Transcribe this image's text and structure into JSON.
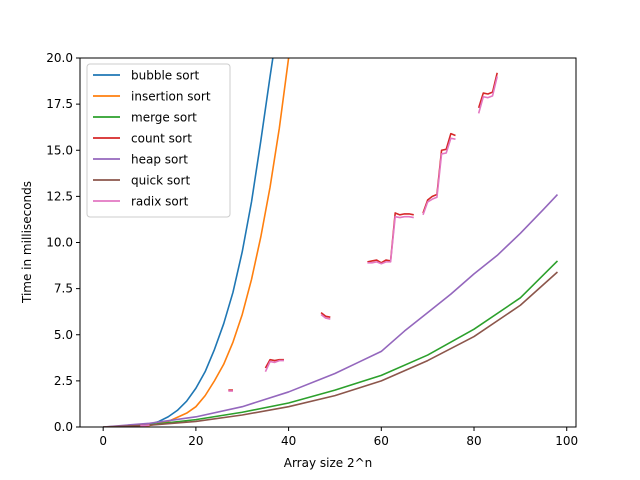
{
  "chart_data": {
    "type": "line",
    "title": "",
    "xlabel": "Array size 2^n",
    "ylabel": "Time in milliseconds",
    "xlim": [
      -5,
      102
    ],
    "ylim": [
      0,
      20
    ],
    "xticks": [
      0,
      20,
      40,
      60,
      80,
      100
    ],
    "yticks": [
      0.0,
      2.5,
      5.0,
      7.5,
      10.0,
      12.5,
      15.0,
      17.5,
      20.0
    ],
    "xtick_labels": [
      "0",
      "20",
      "40",
      "60",
      "80",
      "100"
    ],
    "ytick_labels": [
      "0.0",
      "2.5",
      "5.0",
      "7.5",
      "10.0",
      "12.5",
      "15.0",
      "17.5",
      "20.0"
    ],
    "grid": false,
    "legend_position": "upper-left",
    "series": [
      {
        "name": "bubble sort",
        "color": "#1f77b4",
        "x": [
          0,
          5,
          10,
          12,
          14,
          16,
          18,
          20,
          22,
          24,
          26,
          28,
          30,
          32,
          34,
          36,
          37.5
        ],
        "y": [
          0,
          0.02,
          0.15,
          0.3,
          0.55,
          0.9,
          1.4,
          2.1,
          3.0,
          4.2,
          5.6,
          7.3,
          9.5,
          12.2,
          15.5,
          19.0,
          21.5
        ]
      },
      {
        "name": "insertion sort",
        "color": "#ff7f0e",
        "x": [
          0,
          5,
          10,
          14,
          18,
          20,
          22,
          24,
          26,
          28,
          30,
          32,
          34,
          36,
          38,
          40,
          41
        ],
        "y": [
          0,
          0.01,
          0.08,
          0.3,
          0.75,
          1.1,
          1.7,
          2.5,
          3.4,
          4.6,
          6.1,
          8.0,
          10.3,
          13.0,
          16.2,
          20.0,
          22.0
        ]
      },
      {
        "name": "merge sort",
        "color": "#2ca02c",
        "x": [
          0,
          10,
          20,
          30,
          40,
          50,
          60,
          70,
          80,
          90,
          98
        ],
        "y": [
          0,
          0.12,
          0.4,
          0.8,
          1.3,
          2.0,
          2.8,
          3.9,
          5.3,
          7.0,
          9.0
        ]
      },
      {
        "name": "count sort",
        "color": "#d62728",
        "x": [
          8,
          9,
          10,
          27,
          28,
          35,
          36,
          37,
          38,
          39,
          47,
          48,
          49,
          57,
          58,
          59,
          60,
          61,
          62,
          63,
          64,
          65,
          66,
          67,
          69,
          70,
          71,
          72,
          73,
          74,
          75,
          76,
          81,
          82,
          83,
          84,
          85
        ],
        "y": [
          0.1,
          0.1,
          0.12,
          2.0,
          2.0,
          3.2,
          3.65,
          3.6,
          3.65,
          3.65,
          6.2,
          6.0,
          5.95,
          8.95,
          9.0,
          9.05,
          8.9,
          9.05,
          9.0,
          11.6,
          11.5,
          11.55,
          11.55,
          11.5,
          11.6,
          12.3,
          12.5,
          12.6,
          15.0,
          15.05,
          15.9,
          15.8,
          17.3,
          18.1,
          18.05,
          18.15,
          19.2
        ]
      },
      {
        "name": "heap sort",
        "color": "#9467bd",
        "x": [
          0,
          10,
          20,
          30,
          40,
          50,
          55,
          60,
          65,
          70,
          75,
          80,
          85,
          90,
          95,
          98
        ],
        "y": [
          0,
          0.2,
          0.55,
          1.1,
          1.9,
          2.9,
          3.5,
          4.1,
          5.2,
          6.2,
          7.2,
          8.3,
          9.3,
          10.5,
          11.8,
          12.6
        ]
      },
      {
        "name": "quick sort",
        "color": "#8c564b",
        "x": [
          0,
          10,
          20,
          30,
          40,
          50,
          60,
          70,
          80,
          90,
          98
        ],
        "y": [
          0,
          0.1,
          0.3,
          0.65,
          1.1,
          1.7,
          2.5,
          3.6,
          4.9,
          6.6,
          8.4
        ]
      },
      {
        "name": "radix sort",
        "color": "#e377c2",
        "x": [
          8,
          9,
          10,
          27,
          28,
          35,
          36,
          37,
          38,
          39,
          47,
          48,
          49,
          57,
          58,
          59,
          60,
          61,
          62,
          63,
          64,
          65,
          66,
          67,
          69,
          70,
          71,
          72,
          73,
          74,
          75,
          76,
          81,
          82,
          83,
          84,
          85
        ],
        "y": [
          0.08,
          0.08,
          0.1,
          1.95,
          1.95,
          3.0,
          3.55,
          3.5,
          3.6,
          3.6,
          6.1,
          5.9,
          5.85,
          8.9,
          8.9,
          8.95,
          8.85,
          8.95,
          8.95,
          11.4,
          11.35,
          11.4,
          11.4,
          11.35,
          11.5,
          12.2,
          12.35,
          12.45,
          14.8,
          14.85,
          15.65,
          15.6,
          17.0,
          17.9,
          17.85,
          17.95,
          19.0
        ]
      }
    ]
  }
}
